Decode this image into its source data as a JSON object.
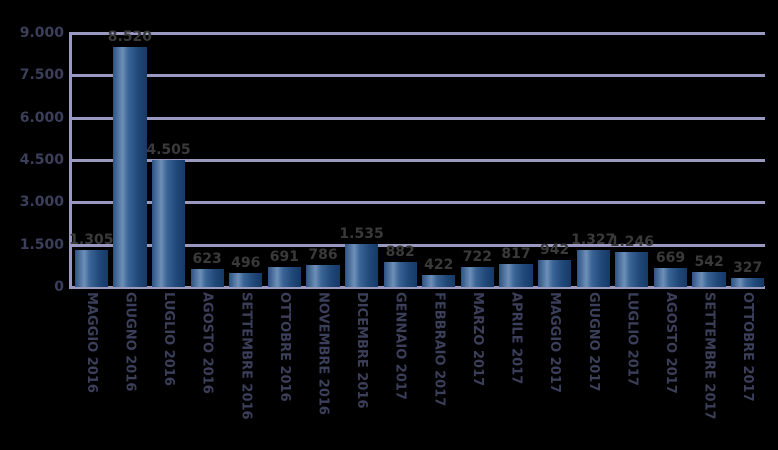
{
  "chart_data": {
    "type": "bar",
    "title": "",
    "xlabel": "",
    "ylabel": "",
    "ylim": [
      0,
      9000
    ],
    "yticks": [
      "0",
      "1.500",
      "3.000",
      "4.500",
      "6.000",
      "7.500",
      "9.000"
    ],
    "ytick_values": [
      0,
      1500,
      3000,
      4500,
      6000,
      7500,
      9000
    ],
    "grid": true,
    "legend": null,
    "categories": [
      "MAGGIO 2016",
      "GIUGNO 2016",
      "LUGLIO 2016",
      "AGOSTO 2016",
      "SETTEMBRE 2016",
      "OTTOBRE 2016",
      "NOVEMBRE 2016",
      "DICEMBRE 2016",
      "GENNAIO 2017",
      "FEBBRAIO 2017",
      "MARZO 2017",
      "APRILE 2017",
      "MAGGIO 2017",
      "GIUGNO 2017",
      "LUGLIO 2017",
      "AGOSTO 2017",
      "SETTEMBRE 2017",
      "OTTOBRE 2017"
    ],
    "values": [
      1305,
      8520,
      4505,
      623,
      496,
      691,
      786,
      1535,
      882,
      422,
      722,
      817,
      942,
      1327,
      1246,
      669,
      542,
      327
    ],
    "value_labels": [
      "1.305",
      "8.520",
      "4.505",
      "623",
      "496",
      "691",
      "786",
      "1.535",
      "882",
      "422",
      "722",
      "817",
      "942",
      "1.327",
      "1.246",
      "669",
      "542",
      "327"
    ],
    "colors": {
      "bar": "#2d5283",
      "grid": "#9a9ac0",
      "text": "#3c3f5a",
      "background": "#000000"
    }
  }
}
